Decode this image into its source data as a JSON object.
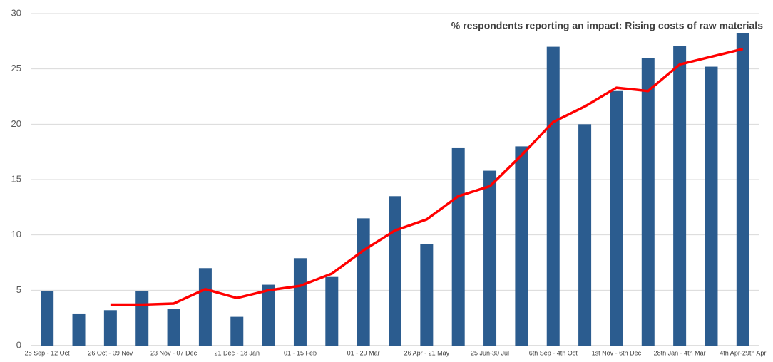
{
  "chart_data": {
    "type": "bar",
    "title": "% respondents reporting an impact: Rising costs of raw materials",
    "categories": [
      "28 Sep - 12 Oct",
      null,
      "26 Oct - 09 Nov",
      null,
      "23 Nov - 07 Dec",
      null,
      "21 Dec - 18 Jan",
      null,
      "01 - 15 Feb",
      null,
      "01 - 29 Mar",
      null,
      "26 Apr - 21 May",
      null,
      "25 Jun-30 Jul",
      null,
      "6th Sep - 4th Oct",
      null,
      "1st Nov - 6th Dec",
      null,
      "28th Jan - 4th Mar",
      null,
      "4th Apr-29th Apr"
    ],
    "series": [
      {
        "type": "bar",
        "color": "#2b5c8f",
        "values": [
          4.9,
          2.9,
          3.2,
          4.9,
          3.3,
          7.0,
          2.6,
          5.5,
          7.9,
          6.2,
          11.5,
          13.5,
          9.2,
          17.9,
          15.8,
          18.0,
          27.0,
          20.0,
          23.0,
          26.0,
          27.1,
          25.2,
          28.2
        ]
      },
      {
        "type": "line",
        "color": "#ff0000",
        "values": [
          null,
          null,
          3.7,
          3.7,
          3.8,
          5.1,
          4.3,
          5.0,
          5.4,
          6.5,
          8.6,
          10.4,
          11.4,
          13.5,
          14.4,
          17.2,
          20.2,
          21.6,
          23.3,
          23.0,
          25.4,
          26.1,
          26.8
        ]
      }
    ],
    "ylim": [
      0,
      30
    ],
    "yticks": [
      0,
      5,
      10,
      15,
      20,
      25,
      30
    ],
    "grid": true
  }
}
